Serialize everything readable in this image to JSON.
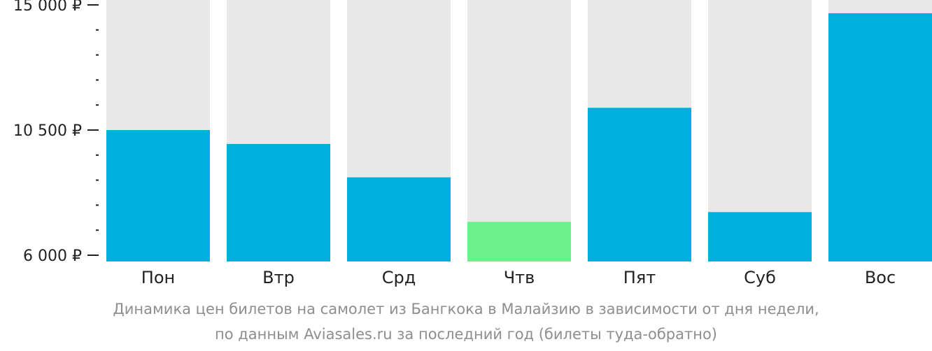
{
  "chart_data": {
    "type": "bar",
    "categories": [
      "Пон",
      "Втр",
      "Срд",
      "Чтв",
      "Пят",
      "Суб",
      "Вос"
    ],
    "values": [
      10500,
      10000,
      8800,
      7200,
      11300,
      7550,
      14700
    ],
    "ylim": [
      6000,
      15000
    ],
    "yticks": [
      {
        "value": 15000,
        "label": "15 000 ₽"
      },
      {
        "value": 10500,
        "label": "10 500 ₽"
      },
      {
        "value": 6000,
        "label": "6 000 ₽"
      }
    ],
    "minor_tick_step": 900,
    "highlight_index": 3,
    "colors": {
      "bar": "#00b0dc",
      "highlight": "#6cf08c",
      "background_bar": "#e8e8e8",
      "axis": "#222222"
    },
    "caption": [
      "Динамика цен билетов на самолет из Бангкока в Малайзию в зависимости от дня недели,",
      "по данным Aviasales.ru за последний год (билеты туда-обратно)"
    ],
    "grid": false,
    "legend": "none"
  }
}
